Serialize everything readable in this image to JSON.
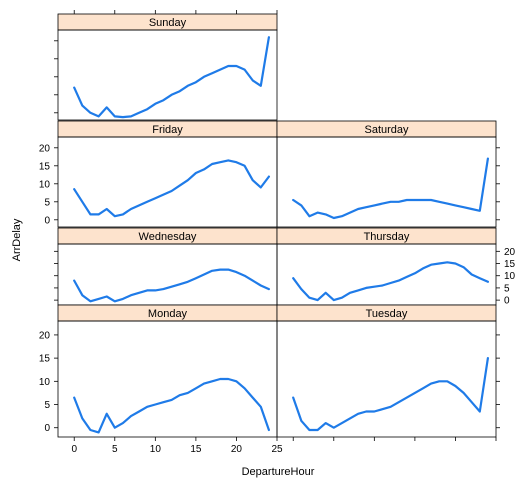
{
  "chart_data": {
    "type": "line",
    "xlabel": "DepartureHour",
    "ylabel": "ArrDelay",
    "xlim": [
      -2,
      25
    ],
    "ylim": [
      -2,
      23
    ],
    "x_ticks": [
      0,
      5,
      10,
      15,
      20,
      25
    ],
    "y_ticks": [
      0,
      5,
      10,
      15,
      20
    ],
    "line_color": "#1f7be8",
    "strip_color": "#fde3cd",
    "x": [
      0,
      1,
      2,
      3,
      4,
      5,
      6,
      7,
      8,
      9,
      10,
      11,
      12,
      13,
      14,
      15,
      16,
      17,
      18,
      19,
      20,
      21,
      22,
      23,
      24
    ],
    "panels": [
      {
        "name": "Sunday",
        "values": [
          7,
          2,
          0,
          -1,
          1.5,
          -1,
          -1.2,
          -1,
          0,
          1,
          2.5,
          3.5,
          5,
          6,
          7.5,
          8.5,
          10,
          11,
          12,
          13,
          13,
          12,
          9,
          7.5,
          21
        ]
      },
      {
        "name": "Friday",
        "values": [
          8.5,
          5,
          1.5,
          1.5,
          3,
          1,
          1.5,
          3,
          4,
          5,
          6,
          7,
          8,
          9.5,
          11,
          13,
          14,
          15.5,
          16,
          16.5,
          16,
          15,
          11,
          9,
          12
        ]
      },
      {
        "name": "Saturday",
        "values": [
          5.5,
          4,
          1,
          2,
          1.5,
          0.5,
          1,
          2,
          3,
          3.5,
          4,
          4.5,
          5,
          5,
          5.5,
          5.5,
          5.5,
          5.5,
          5,
          4.5,
          4,
          3.5,
          3,
          2.5,
          17
        ]
      },
      {
        "name": "Wednesday",
        "values": [
          8,
          2,
          -0.5,
          0.5,
          1.5,
          -0.5,
          0.5,
          2,
          3,
          4,
          4,
          4.5,
          5.5,
          6.5,
          7.5,
          9,
          10.5,
          12,
          12.5,
          12.5,
          11.5,
          10,
          8,
          6,
          4.5
        ]
      },
      {
        "name": "Thursday",
        "values": [
          9,
          4.5,
          1,
          0,
          3,
          0,
          1,
          3,
          4,
          5,
          5.5,
          6,
          7,
          8,
          9.5,
          11,
          13,
          14.5,
          15,
          15.5,
          15,
          13.5,
          10.5,
          9,
          7.5
        ]
      },
      {
        "name": "Monday",
        "values": [
          6.5,
          2,
          -0.5,
          -1,
          3,
          0,
          1,
          2.5,
          3.5,
          4.5,
          5,
          5.5,
          6,
          7,
          7.5,
          8.5,
          9.5,
          10,
          10.5,
          10.5,
          10,
          8.5,
          6.5,
          4.5,
          -0.5
        ]
      },
      {
        "name": "Tuesday",
        "values": [
          6.5,
          1.5,
          -0.5,
          -0.5,
          1,
          0,
          1,
          2,
          3,
          3.5,
          3.5,
          4,
          4.5,
          5.5,
          6.5,
          7.5,
          8.5,
          9.5,
          10,
          10,
          9,
          7.5,
          5.5,
          3.5,
          15
        ]
      }
    ]
  }
}
